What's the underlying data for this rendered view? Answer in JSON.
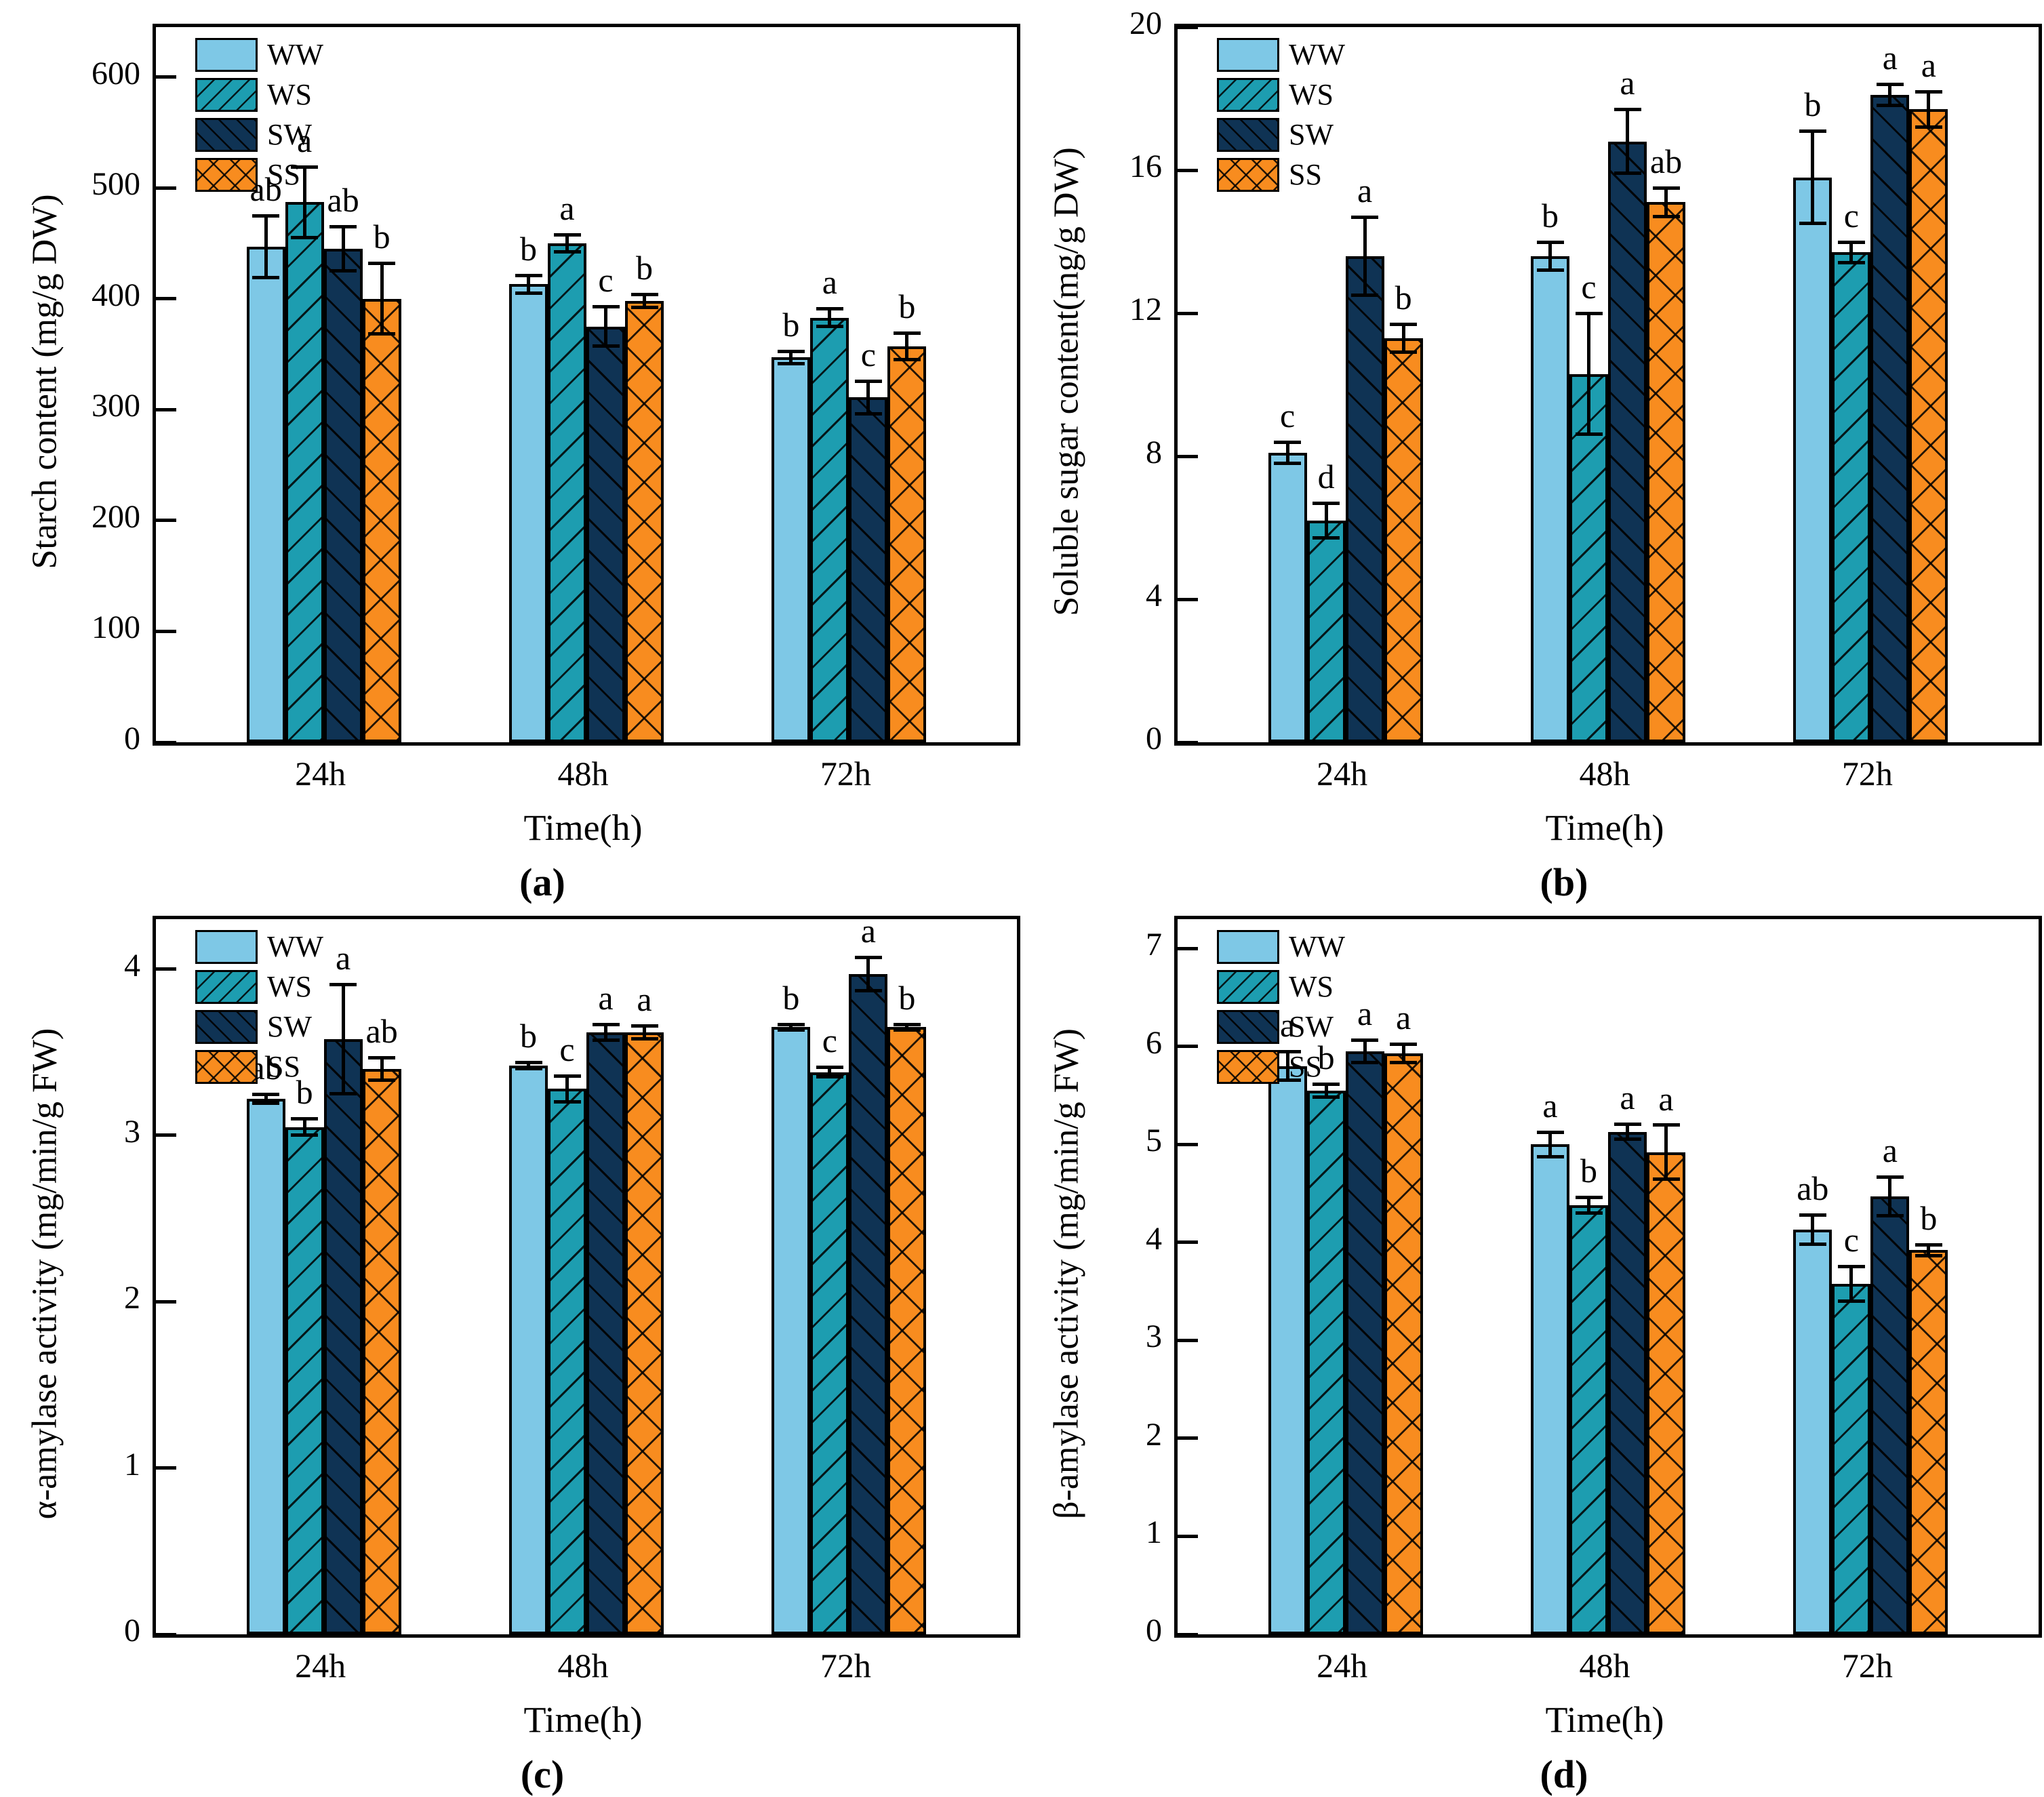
{
  "figure": {
    "description_labels": {
      "xlabel": "Time(h)"
    }
  },
  "chart_data": {
    "type": "bar",
    "categories": [
      "24h",
      "48h",
      "72h"
    ],
    "xlabel": "Time(h)",
    "grid": false,
    "legend_position": "top-left",
    "series_names": [
      "WW",
      "WS",
      "SW",
      "SS"
    ],
    "series_colors": {
      "WW": "#7EC8E6",
      "WS": "#1D9DB0",
      "SW": "#0F3354",
      "SS": "#F88C1F"
    },
    "series_hatches": {
      "WW": "none",
      "WS": "/",
      "SW": "\\",
      "SS": "x"
    },
    "panels": [
      {
        "id": "a",
        "label": "(a)",
        "ylabel": "Starch content (mg/g DW)",
        "ymax": 645,
        "yticks": [
          0,
          100,
          200,
          300,
          400,
          500,
          600
        ],
        "series": [
          {
            "name": "WW",
            "values": [
              447,
              413,
              347
            ],
            "errors": [
              28,
              8,
              6
            ],
            "letters": [
              "ab",
              "b",
              "b"
            ]
          },
          {
            "name": "WS",
            "values": [
              487,
              450,
              383
            ],
            "errors": [
              32,
              8,
              8
            ],
            "letters": [
              "a",
              "a",
              "a"
            ]
          },
          {
            "name": "SW",
            "values": [
              445,
              375,
              311
            ],
            "errors": [
              20,
              18,
              15
            ],
            "letters": [
              "ab",
              "c",
              "c"
            ]
          },
          {
            "name": "SS",
            "values": [
              400,
              398,
              357
            ],
            "errors": [
              32,
              6,
              12
            ],
            "letters": [
              "b",
              "b",
              "b"
            ]
          }
        ]
      },
      {
        "id": "b",
        "label": "(b)",
        "ylabel": "Soluble sugar content(mg/g DW)",
        "ymax": 20,
        "yticks": [
          0,
          4,
          8,
          12,
          16,
          20
        ],
        "series": [
          {
            "name": "WW",
            "values": [
              8.1,
              13.6,
              15.8
            ],
            "errors": [
              0.3,
              0.4,
              1.3
            ],
            "letters": [
              "c",
              "b",
              "b"
            ]
          },
          {
            "name": "WS",
            "values": [
              6.2,
              10.3,
              13.7
            ],
            "errors": [
              0.5,
              1.7,
              0.3
            ],
            "letters": [
              "d",
              "c",
              "c"
            ]
          },
          {
            "name": "SW",
            "values": [
              13.6,
              16.8,
              18.1
            ],
            "errors": [
              1.1,
              0.9,
              0.3
            ],
            "letters": [
              "a",
              "a",
              "a"
            ]
          },
          {
            "name": "SS",
            "values": [
              11.3,
              15.1,
              17.7
            ],
            "errors": [
              0.4,
              0.4,
              0.5
            ],
            "letters": [
              "b",
              "ab",
              "a"
            ]
          }
        ]
      },
      {
        "id": "c",
        "label": "(c)",
        "ylabel": "α-amylase activity (mg/min/g FW)",
        "ymax": 4.3,
        "yticks": [
          0,
          1,
          2,
          3,
          4
        ],
        "series": [
          {
            "name": "WW",
            "values": [
              3.22,
              3.42,
              3.65
            ],
            "errors": [
              0.03,
              0.02,
              0.02
            ],
            "letters": [
              "ab",
              "b",
              "b"
            ]
          },
          {
            "name": "WS",
            "values": [
              3.05,
              3.28,
              3.38
            ],
            "errors": [
              0.05,
              0.08,
              0.03
            ],
            "letters": [
              "b",
              "c",
              "c"
            ]
          },
          {
            "name": "SW",
            "values": [
              3.58,
              3.62,
              3.97
            ],
            "errors": [
              0.33,
              0.05,
              0.1
            ],
            "letters": [
              "a",
              "a",
              "a"
            ]
          },
          {
            "name": "SS",
            "values": [
              3.4,
              3.62,
              3.65
            ],
            "errors": [
              0.07,
              0.04,
              0.02
            ],
            "letters": [
              "ab",
              "a",
              "b"
            ]
          }
        ]
      },
      {
        "id": "d",
        "label": "(d)",
        "ylabel": "β-amylase activity (mg/min/g FW)",
        "ymax": 7.3,
        "yticks": [
          0,
          1,
          2,
          3,
          4,
          5,
          6,
          7
        ],
        "series": [
          {
            "name": "WW",
            "values": [
              5.8,
              5.0,
              4.13
            ],
            "errors": [
              0.15,
              0.13,
              0.15
            ],
            "letters": [
              "a",
              "a",
              "ab"
            ]
          },
          {
            "name": "WS",
            "values": [
              5.55,
              4.38,
              3.58
            ],
            "errors": [
              0.07,
              0.08,
              0.18
            ],
            "letters": [
              "b",
              "b",
              "c"
            ]
          },
          {
            "name": "SW",
            "values": [
              5.95,
              5.13,
              4.47
            ],
            "errors": [
              0.12,
              0.08,
              0.2
            ],
            "letters": [
              "a",
              "a",
              "a"
            ]
          },
          {
            "name": "SS",
            "values": [
              5.93,
              4.92,
              3.92
            ],
            "errors": [
              0.1,
              0.28,
              0.06
            ],
            "letters": [
              "a",
              "a",
              "b"
            ]
          }
        ]
      }
    ]
  }
}
